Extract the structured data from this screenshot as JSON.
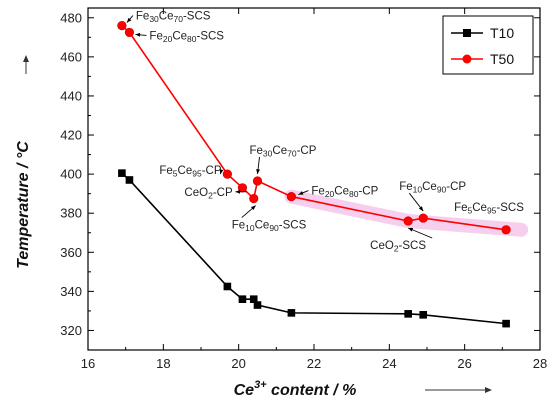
{
  "chart_data": {
    "type": "line",
    "xlabel": "Ce³⁺ content / %",
    "ylabel": "Temperature / °C",
    "xlim": [
      16,
      28
    ],
    "ylim": [
      310,
      485
    ],
    "xticks": [
      16,
      18,
      20,
      22,
      24,
      26,
      28
    ],
    "yticks": [
      320,
      340,
      360,
      380,
      400,
      420,
      440,
      460,
      480
    ],
    "legend_position": "top-right",
    "grid": false,
    "series": [
      {
        "name": "T10",
        "color": "#000000",
        "marker": "square",
        "x": [
          16.9,
          17.1,
          19.7,
          20.1,
          20.4,
          20.5,
          21.4,
          24.5,
          24.9,
          27.1
        ],
        "y": [
          400.5,
          397,
          342.5,
          336,
          336,
          333,
          329,
          328.5,
          328,
          323.5
        ]
      },
      {
        "name": "T50",
        "color": "#ff0000",
        "marker": "circle",
        "x": [
          16.9,
          17.1,
          19.7,
          20.1,
          20.4,
          20.5,
          21.4,
          24.5,
          24.9,
          27.1
        ],
        "y": [
          476,
          472.5,
          400,
          393,
          387.5,
          396.5,
          388.5,
          376,
          377.5,
          371.5
        ]
      }
    ],
    "annotations": [
      {
        "label_parts": [
          "Fe",
          "30",
          "Ce",
          "70",
          "-SCS"
        ],
        "x": 16.9,
        "y": 476
      },
      {
        "label_parts": [
          "Fe",
          "20",
          "Ce",
          "80",
          "-SCS"
        ],
        "x": 17.1,
        "y": 472.5
      },
      {
        "label_parts": [
          "Fe",
          "5",
          "Ce",
          "95",
          "-CP"
        ],
        "x": 19.7,
        "y": 400
      },
      {
        "label_parts": [
          "CeO",
          "2",
          "-CP"
        ],
        "x": 20.1,
        "y": 393
      },
      {
        "label_parts": [
          "Fe",
          "10",
          "Ce",
          "90",
          "-SCS"
        ],
        "x": 20.4,
        "y": 387.5
      },
      {
        "label_parts": [
          "Fe",
          "30",
          "Ce",
          "70",
          "-CP"
        ],
        "x": 20.5,
        "y": 396.5
      },
      {
        "label_parts": [
          "Fe",
          "20",
          "Ce",
          "80",
          "-CP"
        ],
        "x": 21.4,
        "y": 388.5
      },
      {
        "label_parts": [
          "CeO",
          "2",
          "-SCS"
        ],
        "x": 24.5,
        "y": 376
      },
      {
        "label_parts": [
          "Fe",
          "10",
          "Ce",
          "90",
          "-CP"
        ],
        "x": 24.9,
        "y": 377.5
      },
      {
        "label_parts": [
          "Fe",
          "5",
          "Ce",
          "95",
          "-SCS"
        ],
        "x": 27.1,
        "y": 371.5
      }
    ],
    "highlight_color": "#f0a8e0"
  }
}
